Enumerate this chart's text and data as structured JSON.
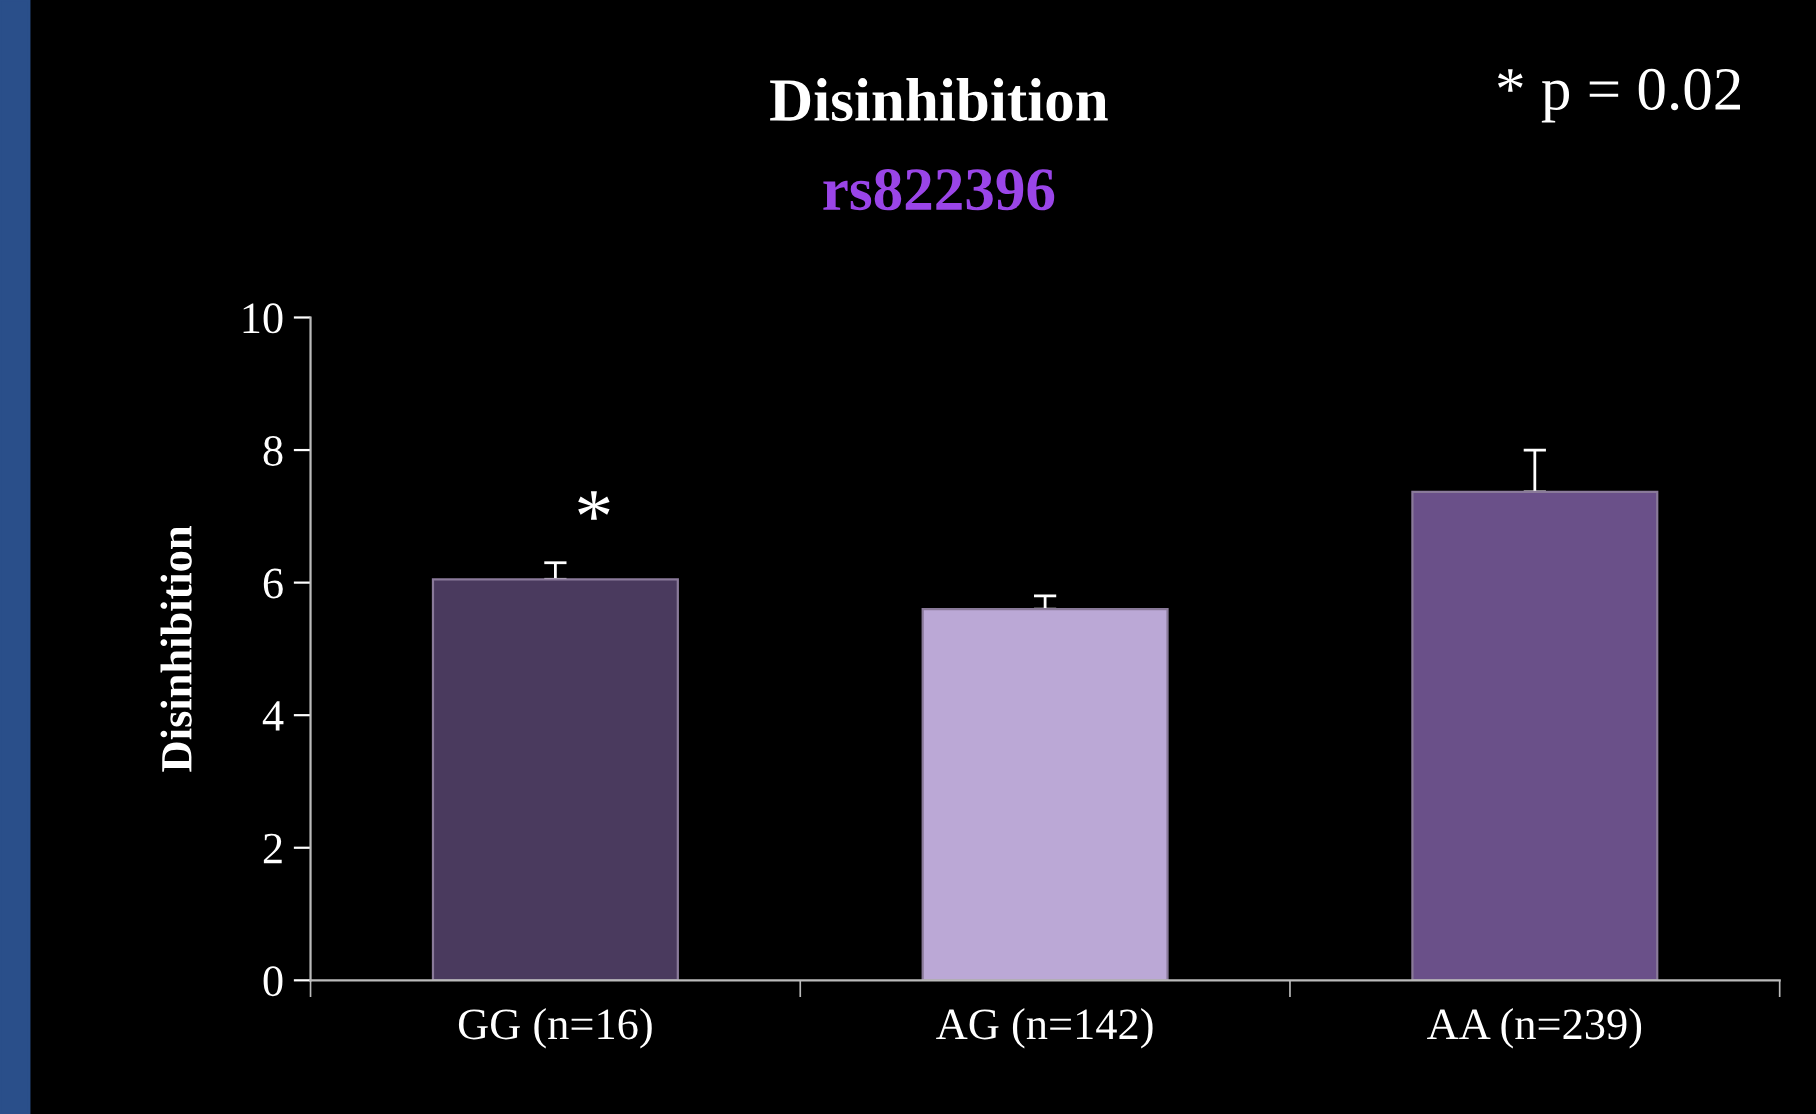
{
  "chart_data": {
    "type": "bar",
    "title": "Disinhibition",
    "subtitle": "rs822396",
    "ylabel": "Disinhibition",
    "categories": [
      "GG (n=16)",
      "AG (n=142)",
      "AA (n=239)"
    ],
    "values": [
      6.05,
      5.6,
      7.37
    ],
    "errors": [
      [
        6.05,
        6.3
      ],
      [
        5.6,
        5.8
      ],
      [
        7.37,
        8.0
      ]
    ],
    "colors": [
      "#4a3a5e",
      "#bba8d6",
      "#6a5089"
    ],
    "ylim": [
      0,
      10
    ],
    "yticks": [
      0,
      2,
      4,
      6,
      8,
      10
    ],
    "grid": false,
    "legend": false,
    "annotations": [
      "* p = 0.02",
      "*"
    ]
  }
}
